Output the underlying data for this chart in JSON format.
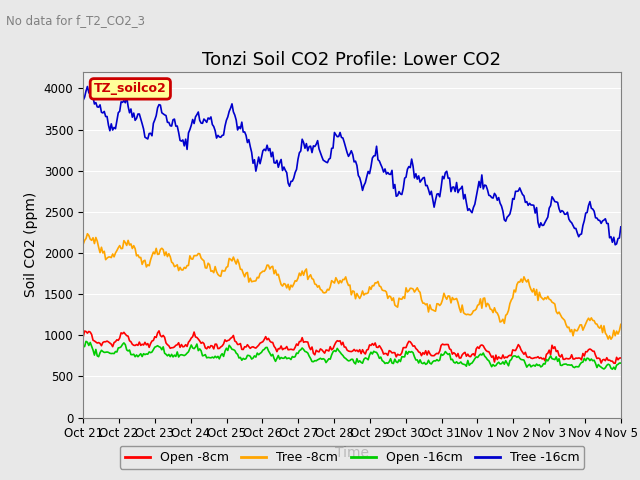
{
  "title": "Tonzi Soil CO2 Profile: Lower CO2",
  "no_data_text": "No data for f_T2_CO2_3",
  "xlabel": "Time",
  "ylabel": "Soil CO2 (ppm)",
  "ylim": [
    0,
    4200
  ],
  "yticks": [
    0,
    500,
    1000,
    1500,
    2000,
    2500,
    3000,
    3500,
    4000
  ],
  "legend_box_text": "TZ_soilco2",
  "legend_box_facecolor": "#FFFF99",
  "legend_box_edgecolor": "#CC0000",
  "legend_box_textcolor": "#CC0000",
  "bg_color": "#E8E8E8",
  "plot_bg_color": "#F0F0F0",
  "series": [
    {
      "label": "Open -8cm",
      "color": "#FF0000"
    },
    {
      "label": "Tree -8cm",
      "color": "#FFA500"
    },
    {
      "label": "Open -16cm",
      "color": "#00CC00"
    },
    {
      "label": "Tree -16cm",
      "color": "#0000CC"
    }
  ],
  "x_tick_labels": [
    "Oct 21",
    "Oct 22",
    "Oct 23",
    "Oct 24",
    "Oct 25",
    "Oct 26",
    "Oct 27",
    "Oct 28",
    "Oct 29",
    "Oct 30",
    "Oct 31",
    "Nov 1",
    "Nov 2",
    "Nov 3",
    "Nov 4",
    "Nov 5"
  ],
  "title_fontsize": 13,
  "axis_fontsize": 10,
  "tick_fontsize": 8.5
}
